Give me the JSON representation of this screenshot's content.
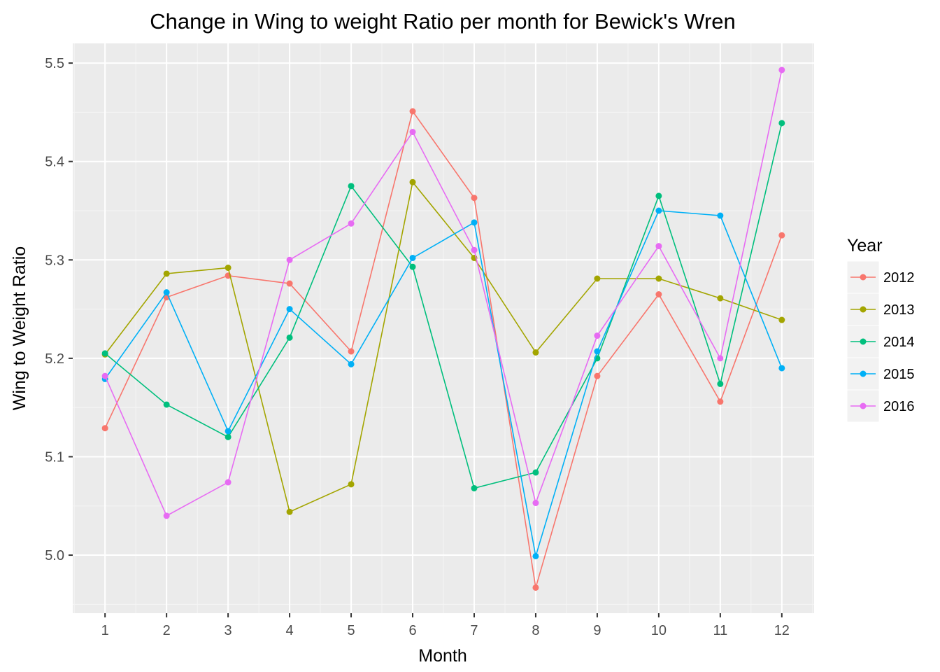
{
  "chart_data": {
    "type": "line",
    "title": "Change in Wing to weight Ratio per month for Bewick's Wren",
    "xlabel": "Month",
    "ylabel": "Wing to Weight Ratio",
    "x": [
      1,
      2,
      3,
      4,
      5,
      6,
      7,
      8,
      9,
      10,
      11,
      12
    ],
    "x_ticks": [
      "1",
      "2",
      "3",
      "4",
      "5",
      "6",
      "7",
      "8",
      "9",
      "10",
      "11",
      "12"
    ],
    "y_ticks": [
      "5.0",
      "5.1",
      "5.2",
      "5.3",
      "5.4",
      "5.5"
    ],
    "xlim": [
      0.475,
      12.525
    ],
    "ylim": [
      4.941,
      5.52
    ],
    "grid": true,
    "legend": {
      "title": "Year",
      "position": "right"
    },
    "series": [
      {
        "name": "2012",
        "color": "#F8766D",
        "values": [
          5.129,
          5.262,
          5.284,
          5.276,
          5.207,
          5.451,
          5.363,
          4.967,
          5.182,
          5.265,
          5.156,
          5.325
        ]
      },
      {
        "name": "2013",
        "color": "#A3A500",
        "values": [
          5.204,
          5.286,
          5.292,
          5.044,
          5.072,
          5.379,
          5.302,
          5.206,
          5.281,
          5.281,
          5.261,
          5.239
        ]
      },
      {
        "name": "2014",
        "color": "#00BF7D",
        "values": [
          5.205,
          5.153,
          5.12,
          5.221,
          5.375,
          5.293,
          5.068,
          5.084,
          5.2,
          5.365,
          5.174,
          5.439
        ]
      },
      {
        "name": "2015",
        "color": "#00B0F6",
        "values": [
          5.179,
          5.267,
          5.126,
          5.25,
          5.194,
          5.302,
          5.338,
          4.999,
          5.207,
          5.35,
          5.345,
          5.19
        ]
      },
      {
        "name": "2016",
        "color": "#E76BF3",
        "values": [
          5.182,
          5.04,
          5.074,
          5.3,
          5.337,
          5.43,
          5.31,
          5.053,
          5.223,
          5.314,
          5.2,
          5.493
        ]
      }
    ]
  }
}
